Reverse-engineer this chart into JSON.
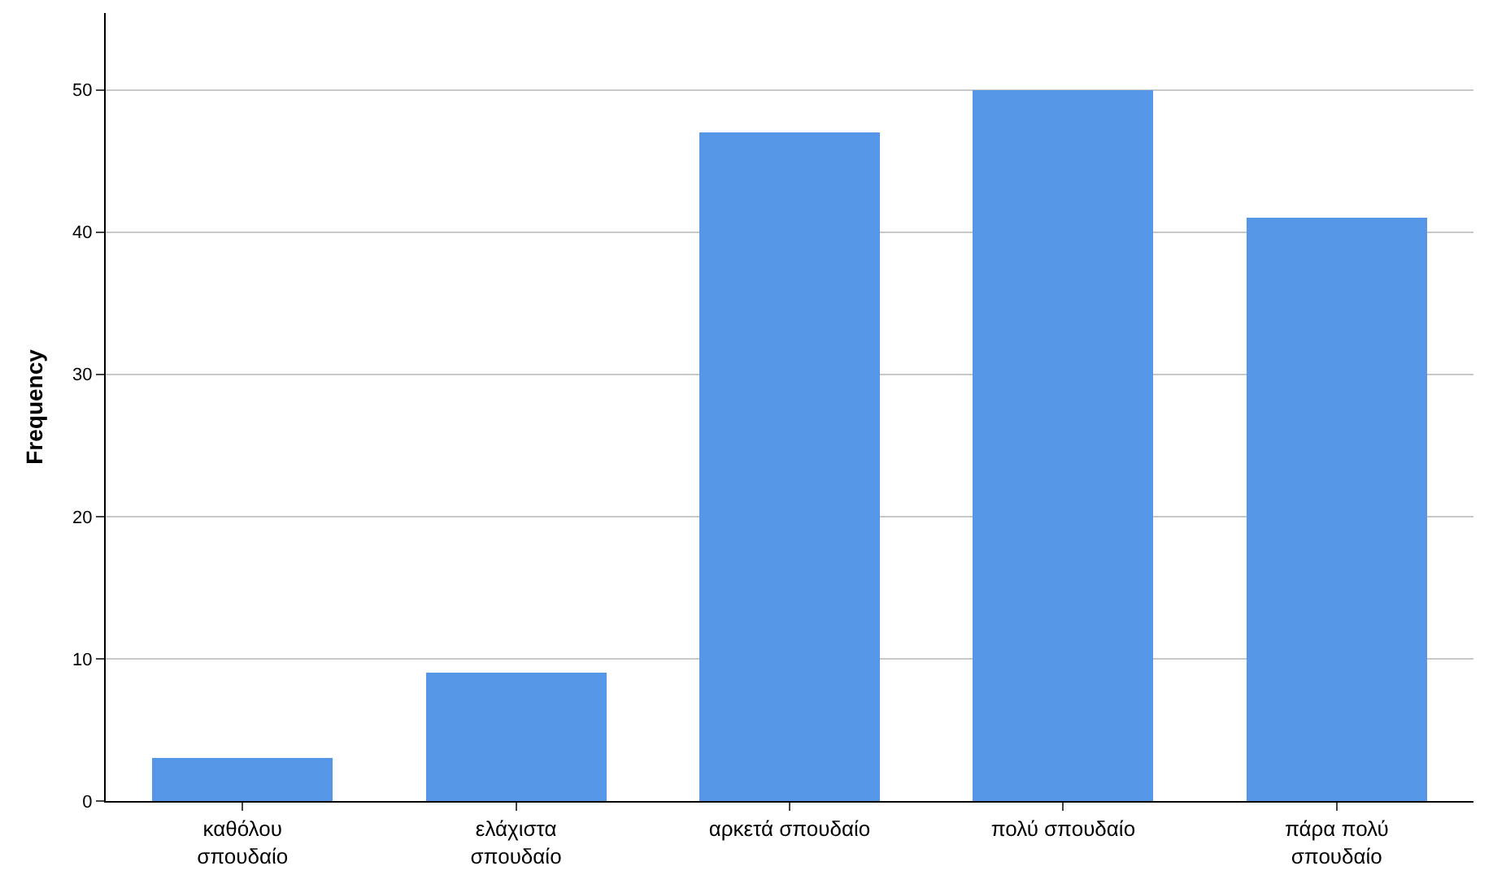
{
  "chart_data": {
    "type": "bar",
    "ylabel": "Frequency",
    "categories": [
      "καθόλου\nσπουδαίο",
      "ελάχιστα\nσπουδαίο",
      "αρκετά σπουδαίο",
      "πολύ σπουδαίο",
      "πάρα πολύ\nσπουδαίο"
    ],
    "values": [
      3,
      9,
      47,
      50,
      41
    ],
    "color": "#5596e6",
    "ylim": [
      0,
      55.4
    ],
    "yticks": [
      0,
      10,
      20,
      30,
      40,
      50
    ],
    "grid": "y"
  }
}
